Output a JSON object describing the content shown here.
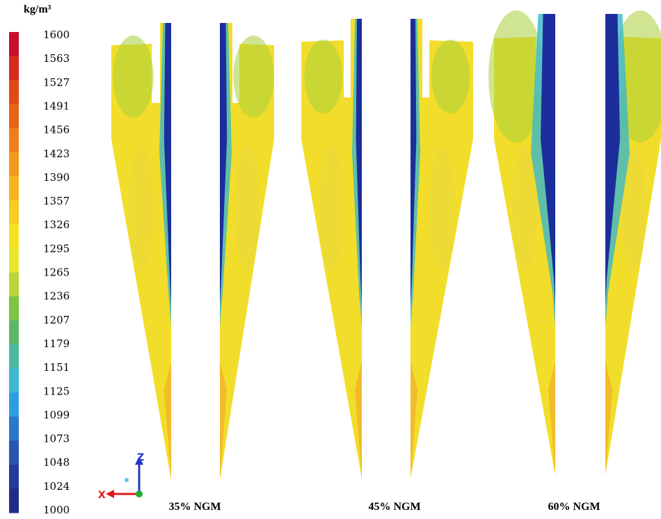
{
  "legend": {
    "unit": "kg/m³",
    "labels": [
      1600,
      1563,
      1527,
      1491,
      1456,
      1423,
      1390,
      1357,
      1326,
      1295,
      1265,
      1236,
      1207,
      1179,
      1151,
      1125,
      1099,
      1073,
      1048,
      1024,
      1000
    ],
    "colors": [
      "#c8102e",
      "#d62a1f",
      "#e04a18",
      "#e86518",
      "#ee7f1a",
      "#f29a1c",
      "#f5b41e",
      "#f7cd20",
      "#f5e124",
      "#e8e62a",
      "#b8d53a",
      "#7cc443",
      "#5bb86a",
      "#4fb9a0",
      "#3fb8d0",
      "#2e9ee0",
      "#2a78cc",
      "#2a55b0",
      "#253a9a",
      "#1f2d8a"
    ]
  },
  "axes": {
    "z": "Z",
    "x": "X"
  },
  "panels": [
    {
      "label": "35% NGM"
    },
    {
      "label": "45% NGM"
    },
    {
      "label": "60% NGM"
    }
  ]
}
